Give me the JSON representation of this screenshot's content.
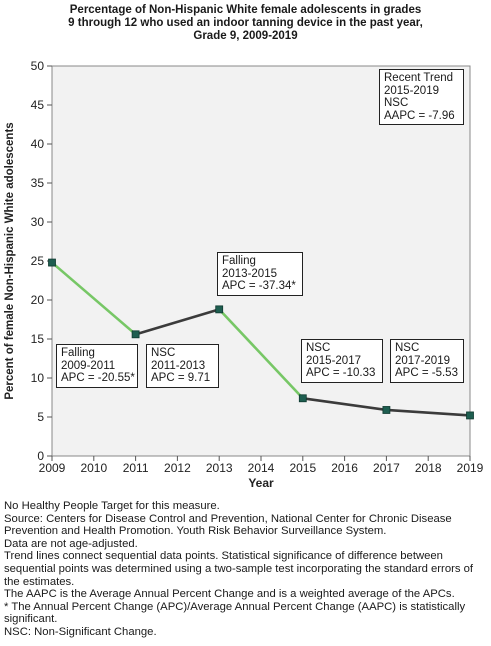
{
  "title_lines": [
    "Percentage of Non-Hispanic White female adolescents in grades",
    "9 through 12 who used an indoor tanning device in the past year,",
    "Grade 9,  2009-2019"
  ],
  "chart_data": {
    "type": "line",
    "xlabel": "Year",
    "ylabel": "Percent of female Non-Hispanic White adolescents",
    "xlim": [
      2009,
      2019
    ],
    "ylim": [
      0,
      50
    ],
    "x_ticks": [
      "2009",
      "2010",
      "2011",
      "2012",
      "2013",
      "2014",
      "2015",
      "2016",
      "2017",
      "2018",
      "2019"
    ],
    "y_ticks": [
      "0",
      "5",
      "10",
      "15",
      "20",
      "25",
      "30",
      "35",
      "40",
      "45",
      "50"
    ],
    "grid": false,
    "points": [
      {
        "x": 2009,
        "y": 24.8
      },
      {
        "x": 2011,
        "y": 15.6
      },
      {
        "x": 2013,
        "y": 18.8
      },
      {
        "x": 2015,
        "y": 7.4
      },
      {
        "x": 2017,
        "y": 5.9
      },
      {
        "x": 2019,
        "y": 5.2
      }
    ],
    "segments": [
      {
        "from": 2009,
        "to": 2011,
        "trend": "Falling",
        "color": "#77c766"
      },
      {
        "from": 2011,
        "to": 2013,
        "trend": "NSC",
        "color": "#3b3b3b"
      },
      {
        "from": 2013,
        "to": 2015,
        "trend": "Falling",
        "color": "#77c766"
      },
      {
        "from": 2015,
        "to": 2017,
        "trend": "NSC",
        "color": "#3b3b3b"
      },
      {
        "from": 2017,
        "to": 2019,
        "trend": "NSC",
        "color": "#3b3b3b"
      }
    ],
    "marker_color": "#1e5e50",
    "plot_background": "#f2f2f2",
    "annotations": [
      {
        "lines": [
          "Falling",
          "2009-2011",
          "APC = -20.55*"
        ]
      },
      {
        "lines": [
          "NSC",
          "2011-2013",
          "APC =  9.71"
        ]
      },
      {
        "lines": [
          "Falling",
          "2013-2015",
          "APC = -37.34*"
        ]
      },
      {
        "lines": [
          "NSC",
          "2015-2017",
          "APC = -10.33"
        ]
      },
      {
        "lines": [
          "NSC",
          "2017-2019",
          "APC = -5.53"
        ]
      },
      {
        "lines": [
          "Recent Trend",
          "2015-2019",
          "NSC",
          "AAPC = -7.96"
        ]
      }
    ]
  },
  "notes": [
    "No Healthy People Target for this measure.",
    "Source: Centers for Disease Control and Prevention, National Center for Chronic Disease Prevention and Health Promotion. Youth Risk Behavior Surveillance System.",
    "Data are not age-adjusted.",
    "Trend lines connect sequential data points. Statistical significance of difference between sequential points was determined using a two-sample test incorporating the standard errors of the estimates.",
    "The AAPC is the Average Annual Percent Change and is a weighted average of the APCs.",
    "* The Annual Percent Change (APC)/Average Annual Percent Change (AAPC) is statistically significant.",
    "NSC: Non-Significant Change."
  ]
}
